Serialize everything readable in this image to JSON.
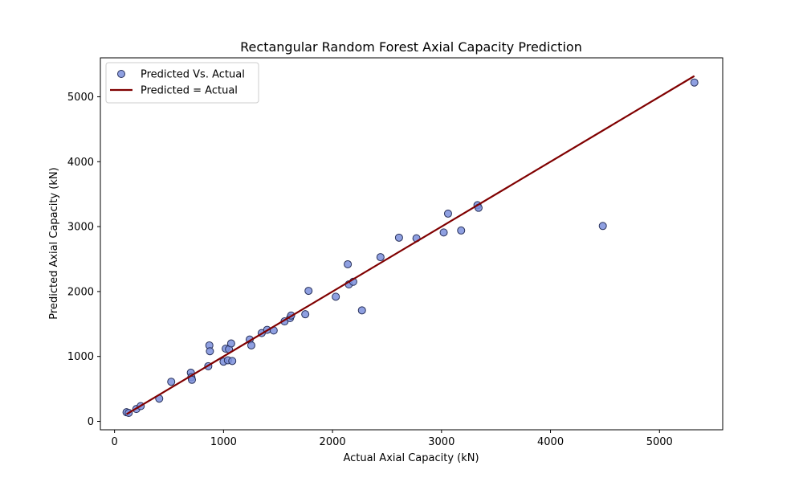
{
  "chart_data": {
    "type": "scatter",
    "title": "Rectangular Random Forest Axial Capacity Prediction",
    "xlabel": "Actual Axial Capacity (kN)",
    "ylabel": "Predicted Axial Capacity (kN)",
    "xlim": [
      -130,
      5580
    ],
    "ylim": [
      -130,
      5600
    ],
    "xticks": [
      0,
      1000,
      2000,
      3000,
      4000,
      5000
    ],
    "yticks": [
      0,
      1000,
      2000,
      3000,
      4000,
      5000
    ],
    "grid": false,
    "legend_position": "top-left",
    "series": [
      {
        "name": "Predicted Vs. Actual",
        "kind": "scatter",
        "color": "#7b8fdc",
        "edge_color": "#27305a",
        "points": [
          [
            110,
            140
          ],
          [
            130,
            130
          ],
          [
            200,
            190
          ],
          [
            240,
            235
          ],
          [
            410,
            350
          ],
          [
            520,
            610
          ],
          [
            700,
            750
          ],
          [
            705,
            680
          ],
          [
            710,
            640
          ],
          [
            860,
            850
          ],
          [
            870,
            1170
          ],
          [
            875,
            1080
          ],
          [
            1000,
            920
          ],
          [
            1020,
            1120
          ],
          [
            1040,
            940
          ],
          [
            1050,
            1110
          ],
          [
            1070,
            1200
          ],
          [
            1080,
            930
          ],
          [
            1240,
            1260
          ],
          [
            1255,
            1170
          ],
          [
            1350,
            1360
          ],
          [
            1400,
            1410
          ],
          [
            1460,
            1400
          ],
          [
            1560,
            1540
          ],
          [
            1610,
            1590
          ],
          [
            1620,
            1630
          ],
          [
            1750,
            1650
          ],
          [
            1780,
            2010
          ],
          [
            2030,
            1920
          ],
          [
            2140,
            2420
          ],
          [
            2150,
            2110
          ],
          [
            2190,
            2150
          ],
          [
            2270,
            1710
          ],
          [
            2440,
            2530
          ],
          [
            2610,
            2830
          ],
          [
            2770,
            2820
          ],
          [
            3020,
            2910
          ],
          [
            3060,
            3200
          ],
          [
            3180,
            2940
          ],
          [
            3330,
            3330
          ],
          [
            3340,
            3290
          ],
          [
            4480,
            3010
          ],
          [
            5320,
            5220
          ]
        ]
      },
      {
        "name": "Predicted = Actual",
        "kind": "line",
        "color": "#800000",
        "points": [
          [
            110,
            110
          ],
          [
            5320,
            5320
          ]
        ]
      }
    ]
  }
}
